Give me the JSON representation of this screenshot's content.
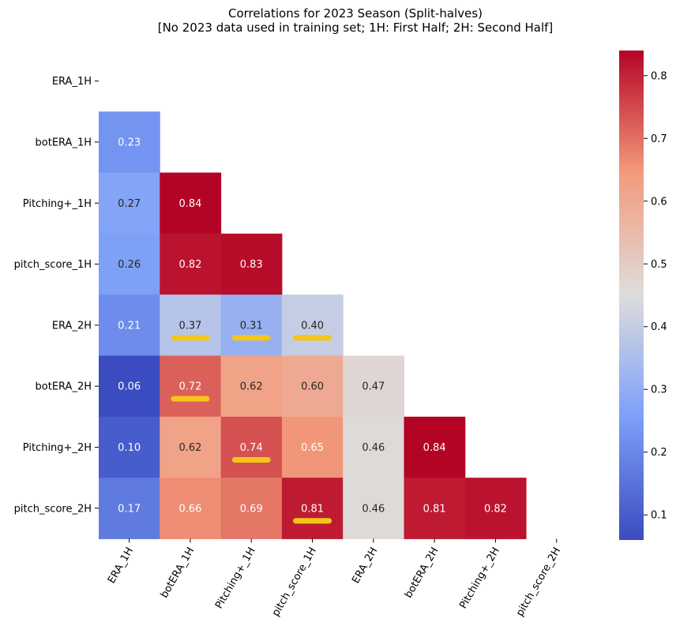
{
  "chart_data": {
    "type": "heatmap",
    "title_line1": "Correlations for 2023 Season (Split-halves)",
    "title_line2": "[No 2023 data used in training set; 1H: First Half; 2H: Second Half]",
    "labels": [
      "ERA_1H",
      "botERA_1H",
      "Pitching+_1H",
      "pitch_score_1H",
      "ERA_2H",
      "botERA_2H",
      "Pitching+_2H",
      "pitch_score_2H"
    ],
    "matrix": [
      [
        null,
        null,
        null,
        null,
        null,
        null,
        null,
        null
      ],
      [
        0.23,
        null,
        null,
        null,
        null,
        null,
        null,
        null
      ],
      [
        0.27,
        0.84,
        null,
        null,
        null,
        null,
        null,
        null
      ],
      [
        0.26,
        0.82,
        0.83,
        null,
        null,
        null,
        null,
        null
      ],
      [
        0.21,
        0.37,
        0.31,
        0.4,
        null,
        null,
        null,
        null
      ],
      [
        0.06,
        0.72,
        0.62,
        0.6,
        0.47,
        null,
        null,
        null
      ],
      [
        0.1,
        0.62,
        0.74,
        0.65,
        0.46,
        0.84,
        null,
        null
      ],
      [
        0.17,
        0.66,
        0.69,
        0.81,
        0.46,
        0.81,
        0.82,
        null
      ]
    ],
    "colormap": "coolwarm",
    "vmin": 0.06,
    "vmax": 0.84,
    "colorbar_ticks": [
      0.1,
      0.2,
      0.3,
      0.4,
      0.5,
      0.6,
      0.7,
      0.8
    ],
    "mask": "upper-triangle",
    "highlights": [
      [
        4,
        1
      ],
      [
        4,
        2
      ],
      [
        4,
        3
      ],
      [
        5,
        1
      ],
      [
        6,
        2
      ],
      [
        7,
        3
      ]
    ],
    "highlight_color": "#f5c518"
  }
}
